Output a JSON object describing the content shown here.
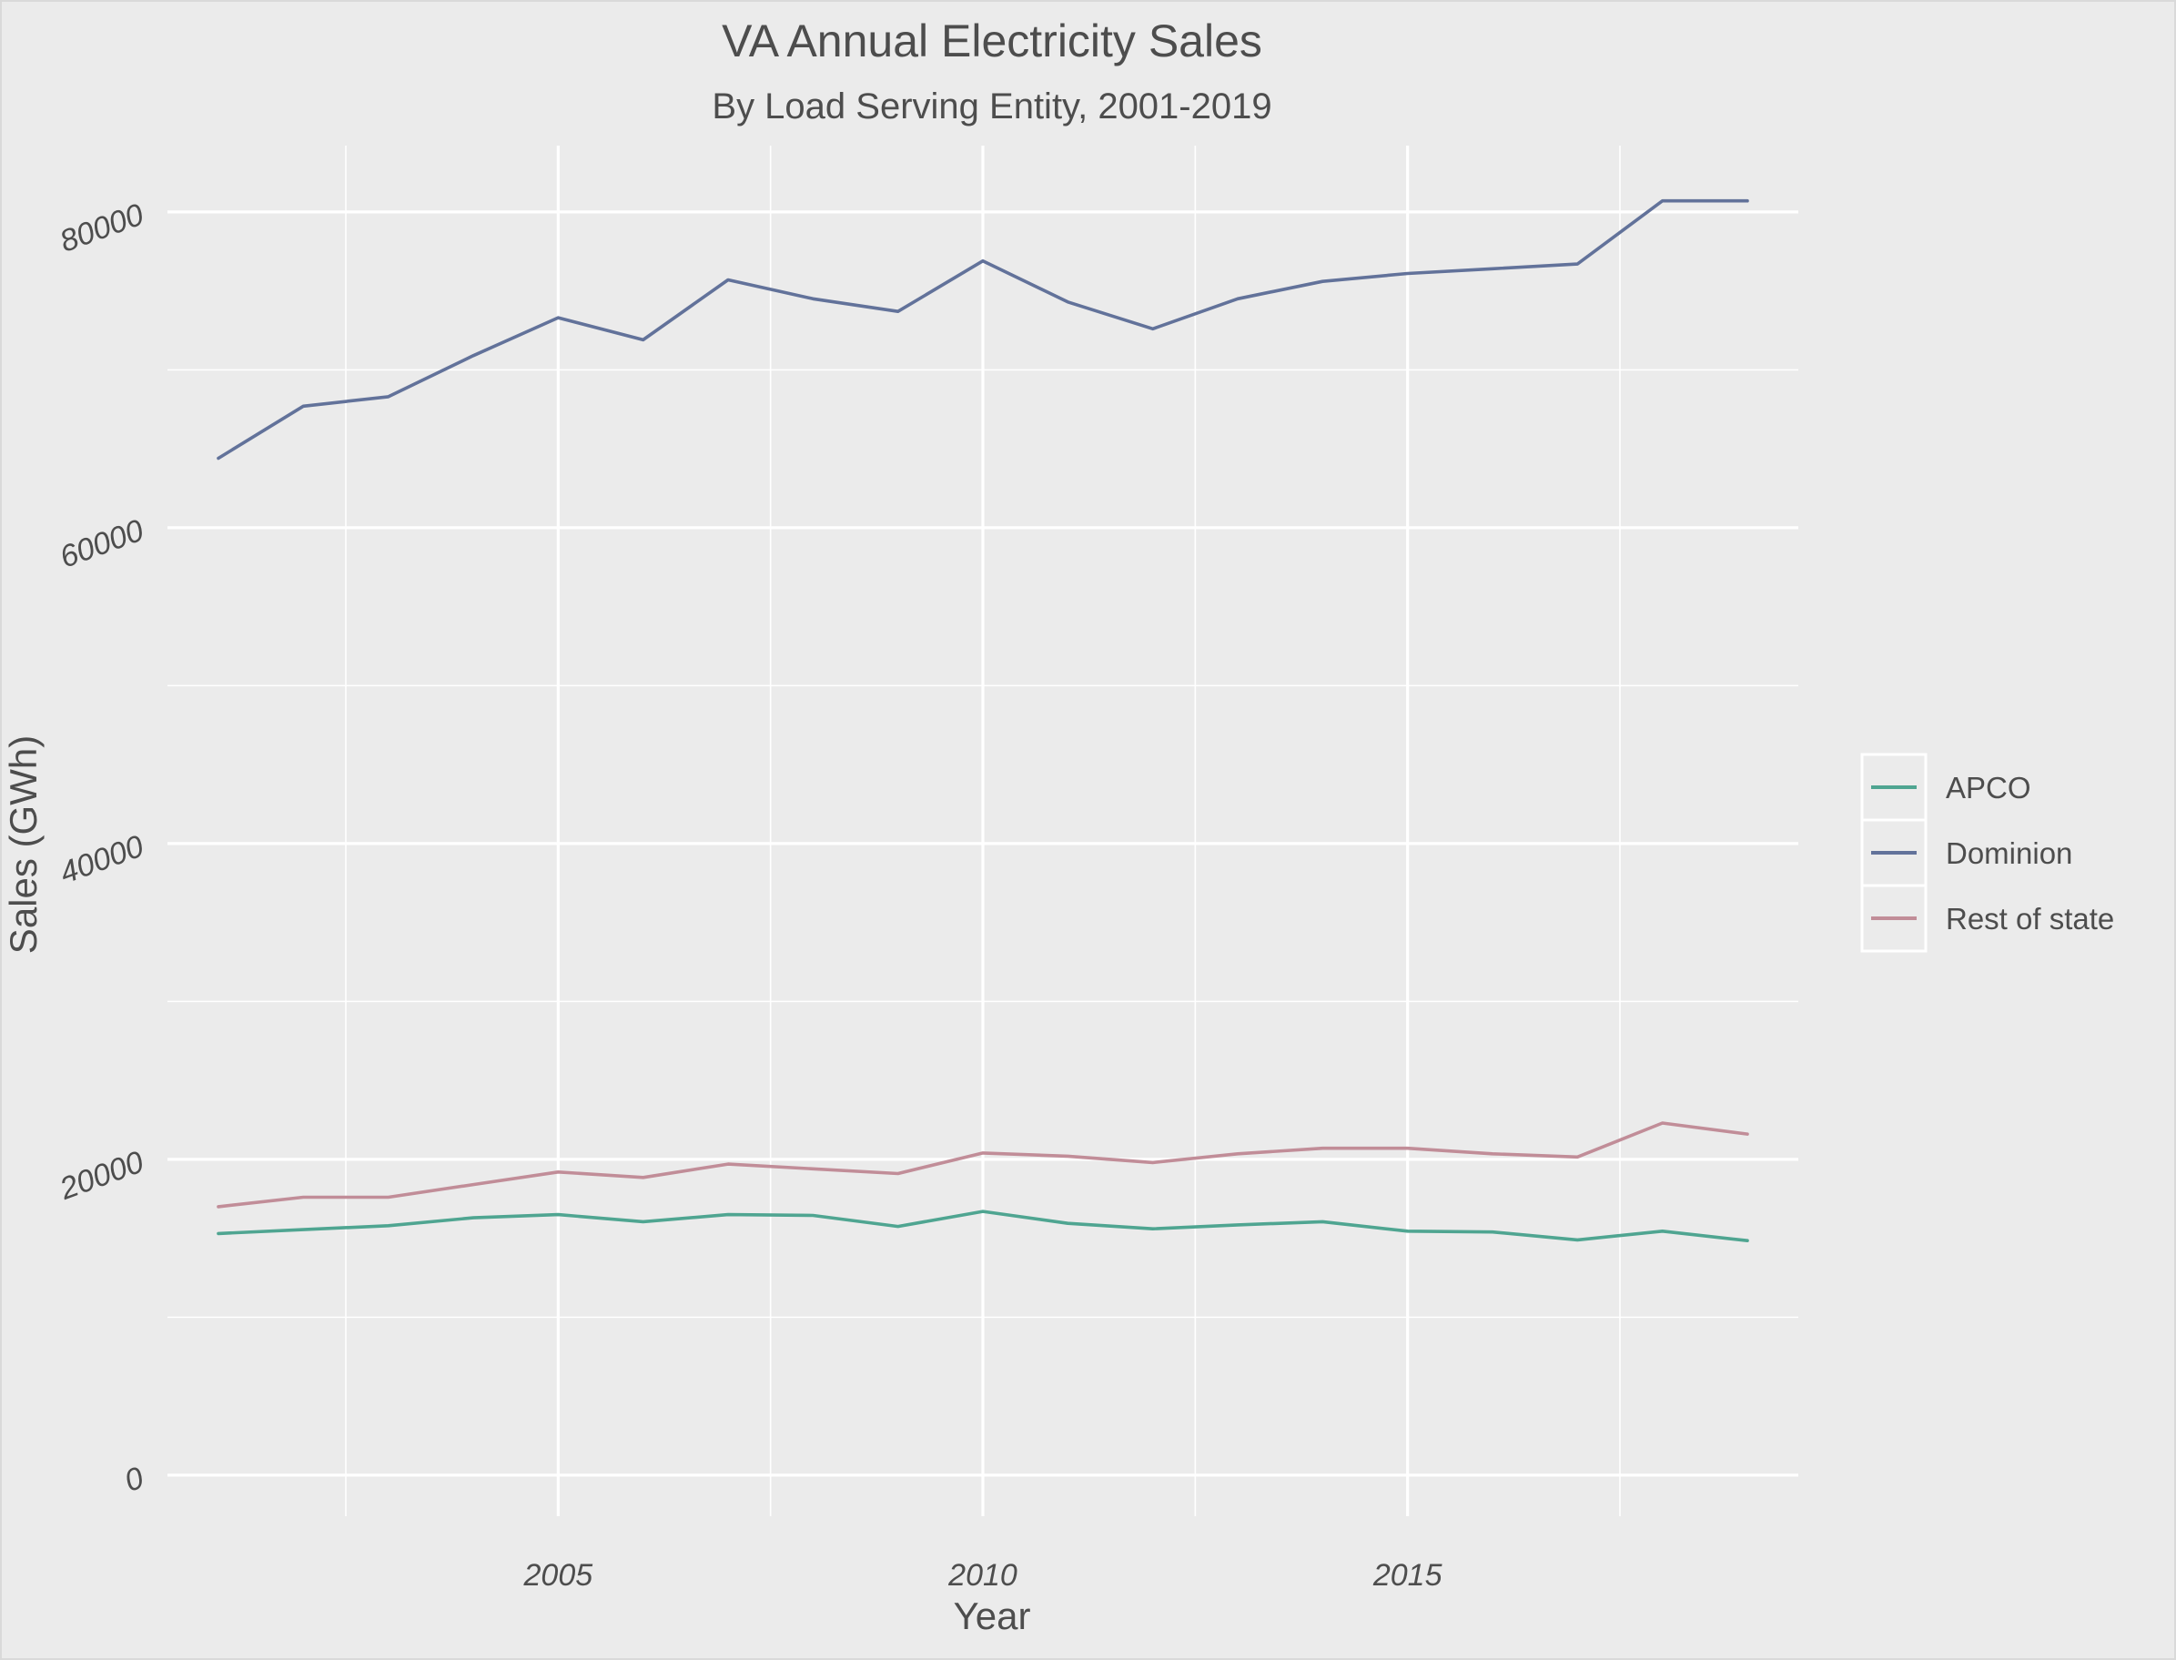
{
  "chart_data": {
    "type": "line",
    "title": "VA Annual Electricity Sales",
    "subtitle": "By Load Serving Entity, 2001-2019",
    "xlabel": "Year",
    "ylabel": "Sales (GWh)",
    "x": [
      2001,
      2002,
      2003,
      2004,
      2005,
      2006,
      2007,
      2008,
      2009,
      2010,
      2011,
      2012,
      2013,
      2014,
      2015,
      2016,
      2017,
      2018,
      2019
    ],
    "xlim": [
      2000.4,
      2019.6
    ],
    "ylim": [
      -2600,
      84200
    ],
    "x_ticks": [
      2005,
      2010,
      2015
    ],
    "x_tick_labels": [
      "2005",
      "2010",
      "2015"
    ],
    "x_minor_ticks": [
      2002.5,
      2007.5,
      2012.5,
      2017.5
    ],
    "y_ticks": [
      0,
      20000,
      40000,
      60000,
      80000
    ],
    "y_tick_labels": [
      "0",
      "20000",
      "40000",
      "60000",
      "80000"
    ],
    "y_minor_ticks": [
      10000,
      30000,
      50000,
      70000
    ],
    "grid": true,
    "legend_position": "right",
    "series": [
      {
        "name": "APCO",
        "color": "#4fa591",
        "values": [
          15300,
          15550,
          15800,
          16300,
          16500,
          16050,
          16500,
          16450,
          15750,
          16700,
          15950,
          15600,
          15850,
          16050,
          15450,
          15400,
          14900,
          15450,
          14850
        ]
      },
      {
        "name": "Dominion",
        "color": "#62729a",
        "values": [
          64400,
          67700,
          68300,
          70900,
          73300,
          71900,
          75700,
          74500,
          73700,
          76900,
          74300,
          72600,
          74500,
          75600,
          76100,
          76400,
          76700,
          80700,
          80700
        ]
      },
      {
        "name": "Rest of state",
        "color": "#c18d98",
        "values": [
          17000,
          17600,
          17600,
          18400,
          19200,
          18850,
          19700,
          19400,
          19100,
          20400,
          20200,
          19800,
          20350,
          20700,
          20700,
          20350,
          20150,
          22300,
          21600
        ]
      }
    ]
  }
}
